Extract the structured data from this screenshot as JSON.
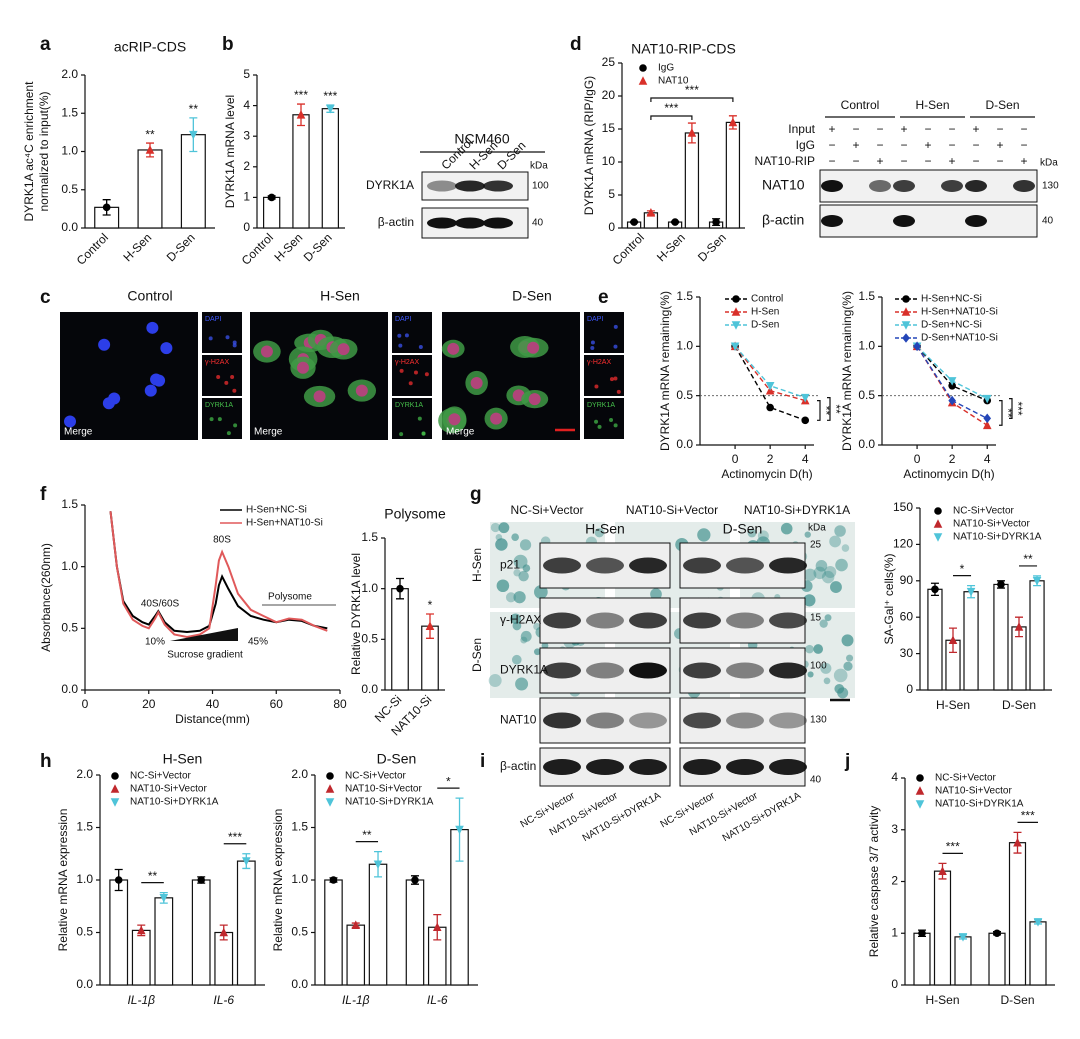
{
  "panel_labels": [
    "a",
    "b",
    "c",
    "d",
    "e",
    "f",
    "g",
    "h",
    "i",
    "j"
  ],
  "chart_data": [
    {
      "type": "bar",
      "title": "acRIP-CDS",
      "ylabel": [
        "DYRK1A ac⁴C enrichment",
        "normalized to input(%)"
      ],
      "categories": [
        "Control",
        "H-Sen",
        "D-Sen"
      ],
      "values": [
        0.27,
        1.02,
        1.22
      ],
      "errors": [
        0.1,
        0.09,
        0.22
      ],
      "colors": [
        "#000000",
        "#d9302a",
        "#4fc4d9"
      ],
      "markers": [
        "circle",
        "triangle",
        "inverted-triangle"
      ],
      "sig_labels": [
        null,
        "**",
        "**"
      ],
      "ylim": [
        0,
        2
      ],
      "yticks": [
        {
          "value": 0,
          "label": "0.0"
        },
        0.5,
        {
          "value": 1,
          "label": "1.0"
        },
        1.5,
        {
          "value": 2,
          "label": "2.0"
        }
      ]
    },
    {
      "type": "bar",
      "ylabel": [
        "DYRK1A mRNA level"
      ],
      "categories": [
        "Control",
        "H-Sen",
        "D-Sen"
      ],
      "values": [
        1.0,
        3.7,
        3.9
      ],
      "errors": [
        0.05,
        0.35,
        0.12
      ],
      "colors": [
        "#000000",
        "#d9302a",
        "#4fc4d9"
      ],
      "markers": [
        "circle",
        "triangle",
        "inverted-triangle"
      ],
      "sig_labels": [
        null,
        "***",
        "***"
      ],
      "ylim": [
        0,
        5
      ],
      "yticks": [
        0,
        1,
        2,
        3,
        4,
        5
      ]
    },
    {
      "type": "bar",
      "title": "NAT10-RIP-CDS",
      "ylabel": [
        "DYRK1A mRNA (RIP/IgG)"
      ],
      "categories": [
        "Control",
        "H-Sen",
        "D-Sen"
      ],
      "series": [
        {
          "name": "IgG",
          "color": "#000000",
          "marker": "circle",
          "values": [
            0.9,
            0.9,
            0.9
          ],
          "errors": [
            0.1,
            0.1,
            0.5
          ]
        },
        {
          "name": "NAT10",
          "color": "#d9302a",
          "marker": "triangle",
          "values": [
            2.3,
            14.4,
            16.0
          ],
          "errors": [
            0.3,
            1.5,
            1.0
          ]
        }
      ],
      "sig_labels": [
        null,
        "***",
        "***"
      ],
      "ylim": [
        0,
        25
      ],
      "yticks": [
        0,
        5,
        10,
        15,
        20,
        25
      ]
    },
    {
      "type": "line",
      "ylabel": [
        "DYRK1A mRNA remaining(%)"
      ],
      "xlabel": "Actinomycin D(h)",
      "x": [
        0,
        2,
        4
      ],
      "series": [
        {
          "name": "Control",
          "color": "#000000",
          "marker": "circle",
          "values": [
            1.0,
            0.38,
            0.25
          ]
        },
        {
          "name": "H-Sen",
          "color": "#d9302a",
          "marker": "triangle",
          "values": [
            1.0,
            0.55,
            0.45
          ]
        },
        {
          "name": "D-Sen",
          "color": "#4fc4d9",
          "marker": "inverted-triangle",
          "values": [
            1.0,
            0.6,
            0.48
          ]
        }
      ],
      "reference_line": 0.5,
      "sig_labels": [
        "**",
        "**"
      ],
      "xlim": [
        -2,
        4.5
      ],
      "xticks": [
        0,
        2,
        4
      ],
      "ylim": [
        0,
        1.5
      ],
      "yticks": [
        {
          "value": 0,
          "label": "0.0"
        },
        0.5,
        {
          "value": 1,
          "label": "1.0"
        },
        1.5
      ]
    },
    {
      "type": "line",
      "ylabel": [
        "DYRK1A mRNA remaining(%)"
      ],
      "xlabel": "Actinomycin D(h)",
      "x": [
        0,
        2,
        4
      ],
      "series": [
        {
          "name": "H-Sen+NC-Si",
          "color": "#000000",
          "marker": "circle",
          "values": [
            1.0,
            0.6,
            0.45
          ]
        },
        {
          "name": "H-Sen+NAT10-Si",
          "color": "#d9302a",
          "marker": "triangle",
          "values": [
            1.0,
            0.43,
            0.2
          ]
        },
        {
          "name": "D-Sen+NC-Si",
          "color": "#4fc4d9",
          "marker": "inverted-triangle",
          "values": [
            1.0,
            0.65,
            0.47
          ]
        },
        {
          "name": "D-Sen+NAT10-Si",
          "color": "#2446b8",
          "marker": "diamond",
          "values": [
            1.0,
            0.45,
            0.27
          ]
        }
      ],
      "reference_line": 0.5,
      "sig_labels": [
        "**",
        "***"
      ],
      "xlim": [
        -2,
        4.5
      ],
      "xticks": [
        0,
        2,
        4
      ],
      "ylim": [
        0,
        1.5
      ],
      "yticks": [
        {
          "value": 0,
          "label": "0.0"
        },
        0.5,
        {
          "value": 1,
          "label": "1.0"
        },
        1.5
      ]
    },
    {
      "type": "line",
      "ylabel": [
        "Absorbance(260nm)"
      ],
      "xlabel": "Distance(mm)",
      "x": [
        8,
        10,
        12,
        15,
        18,
        20,
        22,
        23,
        25,
        28,
        32,
        36,
        39,
        41,
        42,
        43,
        45,
        48,
        52,
        56,
        60,
        64,
        68,
        72,
        76
      ],
      "series": [
        {
          "name": "H-Sen+NC-Si",
          "color": "#000000",
          "values": [
            1.45,
            1.0,
            0.72,
            0.6,
            0.55,
            0.53,
            0.6,
            0.64,
            0.55,
            0.48,
            0.47,
            0.48,
            0.52,
            0.7,
            0.85,
            0.92,
            0.82,
            0.68,
            0.6,
            0.57,
            0.55,
            0.57,
            0.56,
            0.52,
            0.5
          ]
        },
        {
          "name": "H-Sen+NAT10-Si",
          "color": "#e0595a",
          "values": [
            1.45,
            1.0,
            0.7,
            0.57,
            0.52,
            0.5,
            0.58,
            0.63,
            0.53,
            0.45,
            0.43,
            0.45,
            0.5,
            0.85,
            1.05,
            1.12,
            1.0,
            0.78,
            0.65,
            0.6,
            0.55,
            0.58,
            0.57,
            0.52,
            0.48
          ]
        }
      ],
      "annotations": [
        "40S/60S",
        "80S",
        "Polysome",
        "10%",
        "45%",
        "Sucrose gradient"
      ],
      "xlim": [
        0,
        80
      ],
      "xticks": [
        0,
        20,
        40,
        60,
        80
      ],
      "ylim": [
        0,
        1.5
      ],
      "yticks": [
        {
          "value": 0,
          "label": "0.0"
        },
        0.5,
        {
          "value": 1,
          "label": "1.0"
        },
        1.5
      ]
    },
    {
      "type": "bar",
      "title": "Polysome",
      "ylabel": [
        "Relative DYRK1A level"
      ],
      "categories": [
        "NC-Si",
        "NAT10-Si"
      ],
      "values": [
        1.0,
        0.63
      ],
      "errors": [
        0.1,
        0.12
      ],
      "colors": [
        "#000000",
        "#d9302a"
      ],
      "markers": [
        "circle",
        "triangle"
      ],
      "sig_labels": [
        null,
        "*"
      ],
      "ylim": [
        0,
        1.5
      ],
      "yticks": [
        {
          "value": 0,
          "label": "0.0"
        },
        0.5,
        {
          "value": 1,
          "label": "1.0"
        },
        1.5
      ]
    },
    {
      "type": "bar",
      "ylabel": [
        "SA-Gal⁺ cells(%)"
      ],
      "categories": [
        "H-Sen",
        "D-Sen"
      ],
      "series": [
        {
          "name": "NC-Si+Vector",
          "color": "#000000",
          "marker": "circle",
          "values": [
            83,
            87
          ],
          "errors": [
            5,
            3
          ]
        },
        {
          "name": "NAT10-Si+Vector",
          "color": "#c0282d",
          "marker": "triangle",
          "values": [
            41,
            52
          ],
          "errors": [
            10,
            8
          ]
        },
        {
          "name": "NAT10-Si+DYRK1A",
          "color": "#4fc4d9",
          "marker": "inverted-triangle",
          "values": [
            81,
            90
          ],
          "errors": [
            5,
            4
          ]
        }
      ],
      "sig_labels": [
        "*",
        "**"
      ],
      "ylim": [
        0,
        150
      ],
      "yticks": [
        0,
        30,
        60,
        90,
        120,
        150
      ]
    },
    {
      "type": "bar",
      "title": "H-Sen",
      "ylabel": [
        "Relative mRNA expression"
      ],
      "categories": [
        "IL-1β",
        "IL-6"
      ],
      "series": [
        {
          "name": "NC-Si+Vector",
          "color": "#000000",
          "marker": "circle",
          "values": [
            1.0,
            1.0
          ],
          "errors": [
            0.1,
            0.03
          ]
        },
        {
          "name": "NAT10-Si+Vector",
          "color": "#c0282d",
          "marker": "triangle",
          "values": [
            0.52,
            0.5
          ],
          "errors": [
            0.05,
            0.07
          ]
        },
        {
          "name": "NAT10-Si+DYRK1A",
          "color": "#4fc4d9",
          "marker": "inverted-triangle",
          "values": [
            0.83,
            1.18
          ],
          "errors": [
            0.05,
            0.07
          ]
        }
      ],
      "sig_labels": [
        "**",
        "***"
      ],
      "ylim": [
        0,
        2
      ],
      "yticks": [
        {
          "value": 0,
          "label": "0.0"
        },
        0.5,
        {
          "value": 1,
          "label": "1.0"
        },
        1.5,
        {
          "value": 2,
          "label": "2.0"
        }
      ]
    },
    {
      "type": "bar",
      "title": "D-Sen",
      "ylabel": [
        "Relative mRNA expression"
      ],
      "categories": [
        "IL-1β",
        "IL-6"
      ],
      "series": [
        {
          "name": "NC-Si+Vector",
          "color": "#000000",
          "marker": "circle",
          "values": [
            1.0,
            1.0
          ],
          "errors": [
            0.02,
            0.04
          ]
        },
        {
          "name": "NAT10-Si+Vector",
          "color": "#c0282d",
          "marker": "triangle",
          "values": [
            0.57,
            0.55
          ],
          "errors": [
            0.02,
            0.12
          ]
        },
        {
          "name": "NAT10-Si+DYRK1A",
          "color": "#4fc4d9",
          "marker": "inverted-triangle",
          "values": [
            1.15,
            1.48
          ],
          "errors": [
            0.12,
            0.3
          ]
        }
      ],
      "sig_labels": [
        "**",
        "*"
      ],
      "ylim": [
        0,
        2
      ],
      "yticks": [
        {
          "value": 0,
          "label": "0.0"
        },
        0.5,
        {
          "value": 1,
          "label": "1.0"
        },
        1.5,
        {
          "value": 2,
          "label": "2.0"
        }
      ]
    },
    {
      "type": "bar",
      "ylabel": [
        "Relative caspase 3/7 activity"
      ],
      "categories": [
        "H-Sen",
        "D-Sen"
      ],
      "series": [
        {
          "name": "NC-Si+Vector",
          "color": "#000000",
          "marker": "circle",
          "values": [
            1.0,
            1.0
          ],
          "errors": [
            0.06,
            0.03
          ]
        },
        {
          "name": "NAT10-Si+Vector",
          "color": "#c0282d",
          "marker": "triangle",
          "values": [
            2.2,
            2.75
          ],
          "errors": [
            0.15,
            0.2
          ]
        },
        {
          "name": "NAT10-Si+DYRK1A",
          "color": "#4fc4d9",
          "marker": "inverted-triangle",
          "values": [
            0.93,
            1.22
          ],
          "errors": [
            0.04,
            0.04
          ]
        }
      ],
      "sig_labels": [
        "***",
        "***"
      ],
      "ylim": [
        0,
        4
      ],
      "yticks": [
        0,
        1,
        2,
        3,
        4
      ]
    }
  ],
  "micrographs": {
    "columns": [
      "Control",
      "H-Sen",
      "D-Sen"
    ],
    "channels": [
      "DAPI",
      "γ-H2AX",
      "DYRK1A"
    ],
    "merge": "Merge"
  },
  "stain_images": {
    "rows": [
      "H-Sen",
      "D-Sen"
    ],
    "columns": [
      "NC-Si+Vector",
      "NAT10-Si+Vector",
      "NAT10-Si+DYRK1A"
    ]
  },
  "blots": [
    {
      "title": "NCM460",
      "lanes": [
        "Control",
        "H-Sen",
        "D-Sen"
      ],
      "unit": "kDa",
      "rows": [
        {
          "label": "DYRK1A",
          "marker": 100
        },
        {
          "label": "β-actin",
          "marker": 40
        }
      ]
    },
    {
      "groups": [
        "Control",
        "H-Sen",
        "D-Sen"
      ],
      "unit": "kDa",
      "conditions": [
        {
          "label": "Input",
          "signs": [
            "+",
            "−",
            "−",
            "+",
            "−",
            "−",
            "+",
            "−",
            "−"
          ]
        },
        {
          "label": "IgG",
          "signs": [
            "−",
            "+",
            "−",
            "−",
            "+",
            "−",
            "−",
            "+",
            "−"
          ]
        },
        {
          "label": "NAT10-RIP",
          "signs": [
            "−",
            "−",
            "+",
            "−",
            "−",
            "+",
            "−",
            "−",
            "+"
          ]
        }
      ],
      "rows": [
        {
          "label": "NAT10",
          "marker": 130
        },
        {
          "label": "β-actin",
          "marker": 40
        }
      ]
    },
    {
      "groups": [
        "H-Sen",
        "D-Sen"
      ],
      "unit": "kDa",
      "lanes": [
        "NC-Si+Vector",
        "NAT10-Si+Vector",
        "NAT10-Si+DYRK1A",
        "NC-Si+Vector",
        "NAT10-Si+Vector",
        "NAT10-Si+DYRK1A"
      ],
      "rows": [
        {
          "label": "p21",
          "marker": 25
        },
        {
          "label": "γ-H2AX",
          "marker": 15
        },
        {
          "label": "DYRK1A",
          "marker": 100
        },
        {
          "label": "NAT10",
          "marker": 130
        },
        {
          "label": "β-actin",
          "marker": 40
        }
      ]
    }
  ]
}
